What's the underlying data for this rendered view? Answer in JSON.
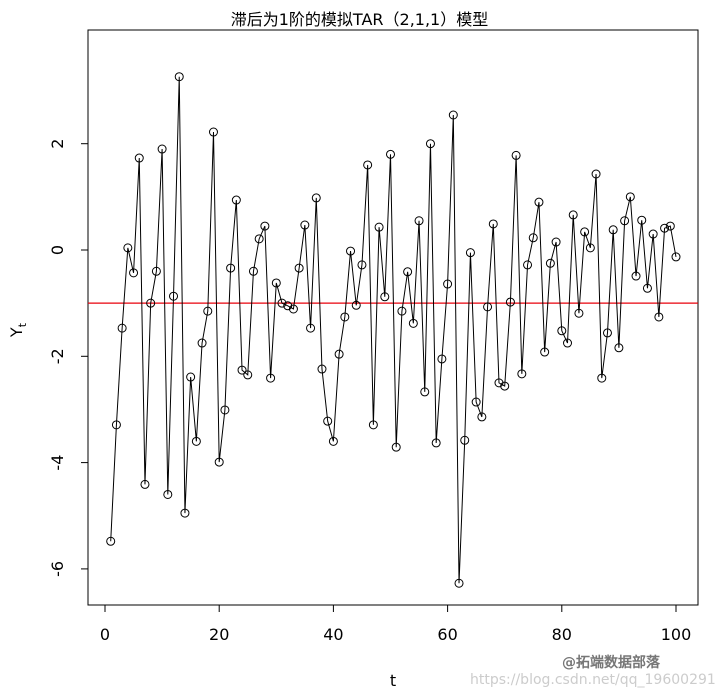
{
  "chart_data": {
    "type": "line",
    "title": "滞后为1阶的模拟TAR（2,1,1）模型",
    "xlabel": "t",
    "ylabel": "Y",
    "ylabel_subscript": "t",
    "xlim": [
      -3,
      104
    ],
    "ylim": [
      -6.6,
      3.4
    ],
    "xticks": [
      0,
      20,
      40,
      60,
      80,
      100
    ],
    "yticks": [
      -6,
      -4,
      -2,
      0,
      2
    ],
    "grid": false,
    "markers": "open-circle",
    "line_color": "#000000",
    "threshold_line": {
      "y": -1,
      "color": "#e8000b"
    },
    "x": [
      1,
      2,
      3,
      4,
      5,
      6,
      7,
      8,
      9,
      10,
      11,
      12,
      13,
      14,
      15,
      16,
      17,
      18,
      19,
      20,
      21,
      22,
      23,
      24,
      25,
      26,
      27,
      28,
      29,
      30,
      31,
      32,
      33,
      34,
      35,
      36,
      37,
      38,
      39,
      40,
      41,
      42,
      43,
      44,
      45,
      46,
      47,
      48,
      49,
      50,
      51,
      52,
      53,
      54,
      55,
      56,
      57,
      58,
      59,
      60,
      61,
      62,
      63,
      64,
      65,
      66,
      67,
      68,
      69,
      70,
      71,
      72,
      73,
      74,
      75,
      76,
      77,
      78,
      79,
      80,
      81,
      82,
      83,
      84,
      85,
      86,
      87,
      88,
      89,
      90,
      91,
      92,
      93,
      94,
      95,
      96,
      97,
      98,
      99,
      100
    ],
    "y": [
      -5.48,
      -3.29,
      -1.47,
      0.04,
      -0.43,
      1.73,
      -4.41,
      -1.0,
      -0.4,
      1.9,
      -4.6,
      -0.87,
      3.26,
      -4.95,
      -2.39,
      -3.6,
      -1.75,
      -1.15,
      2.22,
      -3.99,
      -3.01,
      -0.34,
      0.94,
      -2.26,
      -2.35,
      -0.4,
      0.21,
      0.45,
      -2.41,
      -0.62,
      -1.0,
      -1.05,
      -1.11,
      -0.34,
      0.47,
      -1.47,
      0.98,
      -2.24,
      -3.22,
      -3.6,
      -1.96,
      -1.26,
      -0.02,
      -1.04,
      -0.28,
      1.6,
      -3.29,
      0.43,
      -0.88,
      1.8,
      -3.71,
      -1.15,
      -0.41,
      -1.38,
      0.55,
      -2.67,
      2.0,
      -3.63,
      -2.05,
      -0.64,
      2.54,
      -6.27,
      -3.58,
      -0.05,
      -2.86,
      -3.14,
      -1.07,
      0.49,
      -2.5,
      -2.56,
      -0.98,
      1.78,
      -2.33,
      -0.28,
      0.23,
      0.9,
      -1.92,
      -0.25,
      0.15,
      -1.52,
      -1.75,
      0.66,
      -1.19,
      0.34,
      0.04,
      1.43,
      -2.41,
      -1.56,
      0.38,
      -1.84,
      0.55,
      1.0,
      -0.49,
      0.56,
      -0.72,
      0.3,
      -1.26,
      0.41,
      0.45,
      -0.13
    ]
  },
  "watermark": {
    "line1": "@拓端数据部落",
    "line2": "https://blog.csdn.net/qq_19600291"
  }
}
